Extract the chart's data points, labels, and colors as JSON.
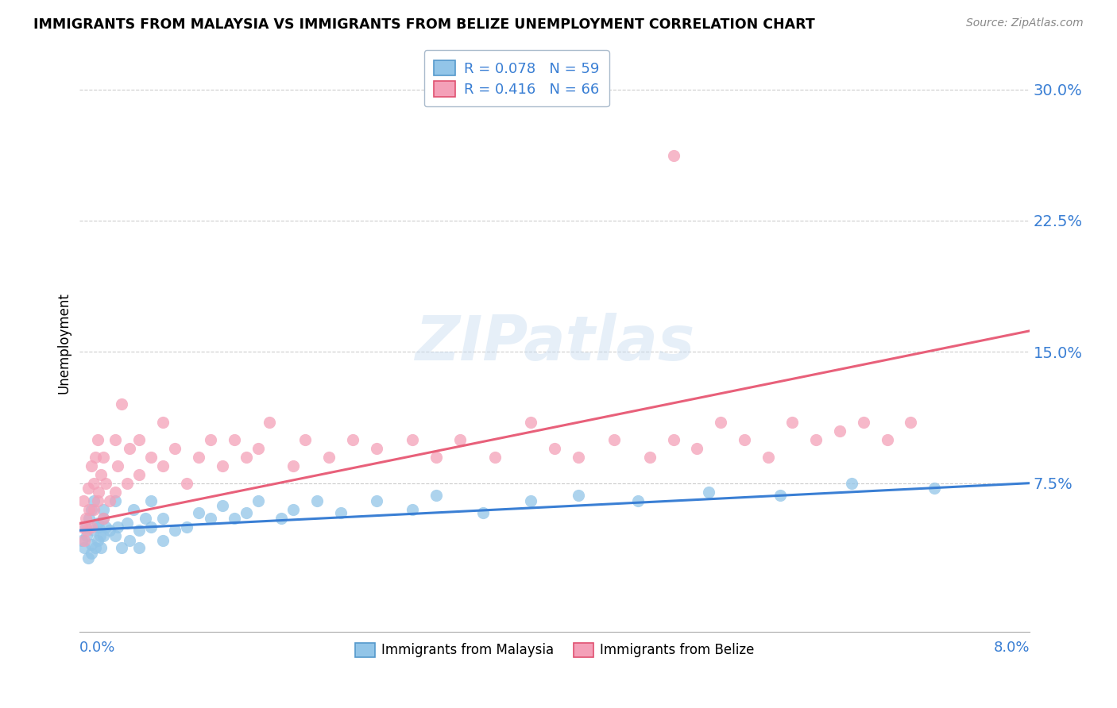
{
  "title": "IMMIGRANTS FROM MALAYSIA VS IMMIGRANTS FROM BELIZE UNEMPLOYMENT CORRELATION CHART",
  "source": "Source: ZipAtlas.com",
  "xlim": [
    0.0,
    0.08
  ],
  "ylim": [
    -0.01,
    0.32
  ],
  "ytick_vals": [
    0.075,
    0.15,
    0.225,
    0.3
  ],
  "ytick_labels": [
    "7.5%",
    "15.0%",
    "22.5%",
    "30.0%"
  ],
  "malaysia_R": 0.078,
  "malaysia_N": 59,
  "belize_R": 0.416,
  "belize_N": 66,
  "malaysia_color": "#92C5E8",
  "belize_color": "#F4A0B8",
  "malaysia_trend_color": "#3A7FD4",
  "belize_trend_color": "#E8607A",
  "watermark": "ZIPatlas",
  "malaysia_x": [
    0.0002,
    0.0004,
    0.0005,
    0.0006,
    0.0007,
    0.0008,
    0.001,
    0.001,
    0.001,
    0.0012,
    0.0012,
    0.0013,
    0.0015,
    0.0015,
    0.0016,
    0.0017,
    0.0018,
    0.002,
    0.002,
    0.002,
    0.0022,
    0.0025,
    0.003,
    0.003,
    0.0032,
    0.0035,
    0.004,
    0.0042,
    0.0045,
    0.005,
    0.005,
    0.0055,
    0.006,
    0.006,
    0.007,
    0.007,
    0.008,
    0.009,
    0.01,
    0.011,
    0.012,
    0.013,
    0.014,
    0.015,
    0.017,
    0.018,
    0.02,
    0.022,
    0.025,
    0.028,
    0.03,
    0.034,
    0.038,
    0.042,
    0.047,
    0.053,
    0.059,
    0.065,
    0.072
  ],
  "malaysia_y": [
    0.042,
    0.038,
    0.05,
    0.045,
    0.032,
    0.055,
    0.04,
    0.06,
    0.035,
    0.048,
    0.065,
    0.038,
    0.052,
    0.042,
    0.05,
    0.045,
    0.038,
    0.055,
    0.045,
    0.06,
    0.05,
    0.048,
    0.045,
    0.065,
    0.05,
    0.038,
    0.052,
    0.042,
    0.06,
    0.048,
    0.038,
    0.055,
    0.05,
    0.065,
    0.042,
    0.055,
    0.048,
    0.05,
    0.058,
    0.055,
    0.062,
    0.055,
    0.058,
    0.065,
    0.055,
    0.06,
    0.065,
    0.058,
    0.065,
    0.06,
    0.068,
    0.058,
    0.065,
    0.068,
    0.065,
    0.07,
    0.068,
    0.075,
    0.072
  ],
  "belize_x": [
    0.0002,
    0.0003,
    0.0004,
    0.0005,
    0.0006,
    0.0007,
    0.0008,
    0.001,
    0.001,
    0.0012,
    0.0012,
    0.0013,
    0.0015,
    0.0015,
    0.0016,
    0.0018,
    0.002,
    0.002,
    0.0022,
    0.0025,
    0.003,
    0.003,
    0.0032,
    0.0035,
    0.004,
    0.0042,
    0.005,
    0.005,
    0.006,
    0.007,
    0.007,
    0.008,
    0.009,
    0.01,
    0.011,
    0.012,
    0.013,
    0.014,
    0.015,
    0.016,
    0.018,
    0.019,
    0.021,
    0.023,
    0.025,
    0.028,
    0.03,
    0.032,
    0.035,
    0.038,
    0.04,
    0.042,
    0.045,
    0.048,
    0.05,
    0.05,
    0.052,
    0.054,
    0.056,
    0.058,
    0.06,
    0.062,
    0.064,
    0.066,
    0.068,
    0.07
  ],
  "belize_y": [
    0.05,
    0.065,
    0.042,
    0.055,
    0.048,
    0.072,
    0.06,
    0.05,
    0.085,
    0.075,
    0.06,
    0.09,
    0.065,
    0.1,
    0.07,
    0.08,
    0.055,
    0.09,
    0.075,
    0.065,
    0.1,
    0.07,
    0.085,
    0.12,
    0.075,
    0.095,
    0.08,
    0.1,
    0.09,
    0.085,
    0.11,
    0.095,
    0.075,
    0.09,
    0.1,
    0.085,
    0.1,
    0.09,
    0.095,
    0.11,
    0.085,
    0.1,
    0.09,
    0.1,
    0.095,
    0.1,
    0.09,
    0.1,
    0.09,
    0.11,
    0.095,
    0.09,
    0.1,
    0.09,
    0.262,
    0.1,
    0.095,
    0.11,
    0.1,
    0.09,
    0.11,
    0.1,
    0.105,
    0.11,
    0.1,
    0.11
  ],
  "mal_trend_x0": 0.0,
  "mal_trend_x1": 0.08,
  "mal_trend_y0": 0.048,
  "mal_trend_y1": 0.075,
  "bel_trend_x0": 0.0,
  "bel_trend_x1": 0.08,
  "bel_trend_y0": 0.052,
  "bel_trend_y1": 0.162
}
